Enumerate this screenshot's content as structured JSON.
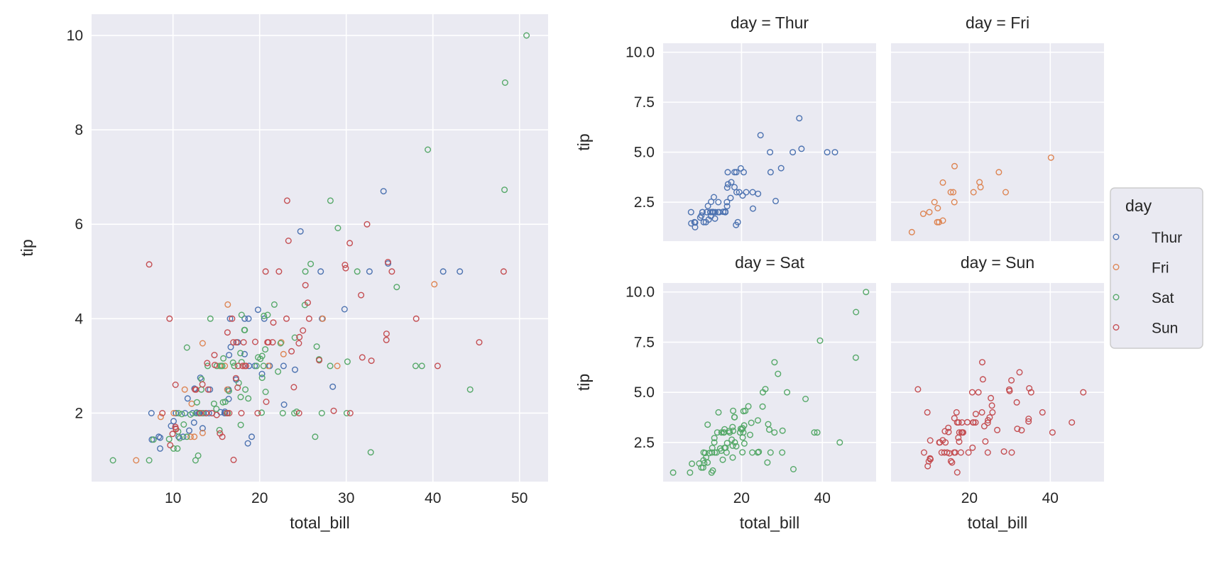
{
  "chart_data": {
    "type": "scatter",
    "x_var": "total_bill",
    "y_var": "tip",
    "hue": "day",
    "xlim": [
      0.6,
      53.3
    ],
    "ylim": [
      0.55,
      10.45
    ],
    "grid": true,
    "legend": {
      "title": "day",
      "placement": "right",
      "entries": [
        "Thur",
        "Fri",
        "Sat",
        "Sun"
      ]
    },
    "series": [
      {
        "name": "Thur",
        "color": "#4c72b0",
        "points": [
          [
            27.2,
            4.0
          ],
          [
            22.76,
            3.0
          ],
          [
            17.29,
            2.71
          ],
          [
            19.44,
            3.0
          ],
          [
            16.66,
            3.4
          ],
          [
            10.07,
            1.83
          ],
          [
            32.68,
            5.0
          ],
          [
            15.98,
            2.03
          ],
          [
            34.83,
            5.17
          ],
          [
            13.03,
            2.0
          ],
          [
            18.28,
            4.0
          ],
          [
            24.71,
            5.85
          ],
          [
            21.16,
            3.0
          ],
          [
            10.65,
            1.5
          ],
          [
            12.43,
            1.8
          ],
          [
            24.08,
            2.92
          ],
          [
            11.69,
            2.31
          ],
          [
            13.42,
            1.68
          ],
          [
            14.26,
            2.5
          ],
          [
            15.95,
            2.0
          ],
          [
            12.48,
            2.52
          ],
          [
            29.8,
            4.2
          ],
          [
            8.52,
            1.48
          ],
          [
            14.52,
            2.0
          ],
          [
            11.38,
            2.0
          ],
          [
            22.82,
            2.18
          ],
          [
            19.08,
            1.5
          ],
          [
            20.27,
            2.83
          ],
          [
            11.17,
            1.5
          ],
          [
            12.26,
            2.0
          ],
          [
            18.26,
            3.25
          ],
          [
            8.51,
            1.25
          ],
          [
            10.33,
            2.0
          ],
          [
            14.15,
            2.0
          ],
          [
            16.0,
            2.0
          ],
          [
            13.16,
            2.75
          ],
          [
            17.47,
            3.5
          ],
          [
            34.3,
            6.7
          ],
          [
            41.19,
            5.0
          ],
          [
            27.05,
            5.0
          ],
          [
            16.43,
            2.3
          ],
          [
            8.35,
            1.5
          ],
          [
            18.64,
            1.36
          ],
          [
            11.87,
            1.63
          ],
          [
            9.78,
            1.73
          ],
          [
            7.51,
            2.0
          ],
          [
            19.81,
            4.19
          ],
          [
            28.44,
            2.56
          ],
          [
            15.48,
            2.02
          ],
          [
            16.58,
            4.0
          ],
          [
            7.56,
            1.44
          ],
          [
            10.34,
            2.0
          ],
          [
            43.11,
            5.0
          ],
          [
            13.0,
            2.0
          ],
          [
            13.51,
            2.0
          ],
          [
            18.71,
            4.0
          ],
          [
            12.74,
            2.01
          ],
          [
            13.0,
            2.0
          ],
          [
            16.4,
            2.5
          ],
          [
            20.53,
            4.0
          ],
          [
            16.47,
            3.23
          ],
          [
            18.78,
            3.0
          ]
        ]
      },
      {
        "name": "Fri",
        "color": "#dd8452",
        "points": [
          [
            28.97,
            3.0
          ],
          [
            22.49,
            3.5
          ],
          [
            5.75,
            1.0
          ],
          [
            16.32,
            4.3
          ],
          [
            22.75,
            3.25
          ],
          [
            40.17,
            4.73
          ],
          [
            27.28,
            4.0
          ],
          [
            12.03,
            1.5
          ],
          [
            21.01,
            3.0
          ],
          [
            12.46,
            1.5
          ],
          [
            11.35,
            2.5
          ],
          [
            15.38,
            3.0
          ],
          [
            12.16,
            2.2
          ],
          [
            13.42,
            3.48
          ],
          [
            8.58,
            1.92
          ],
          [
            15.98,
            3.0
          ],
          [
            13.42,
            1.58
          ],
          [
            16.27,
            2.5
          ],
          [
            10.09,
            2.0
          ]
        ]
      },
      {
        "name": "Sat",
        "color": "#55a868",
        "points": [
          [
            20.65,
            3.35
          ],
          [
            17.92,
            4.08
          ],
          [
            20.29,
            2.75
          ],
          [
            15.77,
            2.23
          ],
          [
            39.42,
            7.58
          ],
          [
            19.82,
            3.18
          ],
          [
            17.81,
            2.34
          ],
          [
            13.37,
            2.0
          ],
          [
            12.69,
            2.0
          ],
          [
            21.7,
            4.3
          ],
          [
            19.65,
            3.0
          ],
          [
            9.55,
            1.45
          ],
          [
            18.35,
            2.5
          ],
          [
            15.06,
            3.0
          ],
          [
            20.69,
            2.45
          ],
          [
            17.78,
            3.27
          ],
          [
            24.06,
            3.6
          ],
          [
            16.31,
            2.0
          ],
          [
            16.93,
            3.07
          ],
          [
            18.69,
            2.31
          ],
          [
            31.27,
            5.0
          ],
          [
            16.04,
            2.24
          ],
          [
            38.01,
            3.0
          ],
          [
            26.41,
            1.5
          ],
          [
            11.24,
            1.76
          ],
          [
            48.27,
            6.73
          ],
          [
            20.29,
            3.21
          ],
          [
            13.81,
            2.0
          ],
          [
            11.02,
            1.98
          ],
          [
            18.29,
            3.76
          ],
          [
            17.59,
            2.64
          ],
          [
            20.08,
            3.15
          ],
          [
            16.45,
            2.47
          ],
          [
            3.07,
            1.0
          ],
          [
            20.23,
            2.01
          ],
          [
            15.01,
            2.09
          ],
          [
            12.02,
            1.97
          ],
          [
            17.07,
            3.0
          ],
          [
            26.86,
            3.14
          ],
          [
            25.28,
            5.0
          ],
          [
            14.73,
            2.2
          ],
          [
            10.51,
            1.25
          ],
          [
            17.92,
            3.08
          ],
          [
            44.3,
            2.5
          ],
          [
            22.42,
            3.48
          ],
          [
            20.92,
            4.08
          ],
          [
            15.36,
            1.64
          ],
          [
            20.49,
            4.06
          ],
          [
            25.21,
            4.29
          ],
          [
            18.24,
            3.76
          ],
          [
            14.31,
            4.0
          ],
          [
            14.0,
            3.0
          ],
          [
            7.25,
            1.0
          ],
          [
            10.59,
            1.61
          ],
          [
            10.63,
            2.0
          ],
          [
            50.81,
            10.0
          ],
          [
            15.81,
            3.16
          ],
          [
            26.59,
            3.41
          ],
          [
            38.73,
            3.0
          ],
          [
            24.27,
            2.03
          ],
          [
            12.76,
            2.23
          ],
          [
            30.06,
            2.0
          ],
          [
            25.89,
            5.16
          ],
          [
            48.33,
            9.0
          ],
          [
            13.27,
            2.5
          ],
          [
            28.17,
            6.5
          ],
          [
            12.9,
            1.1
          ],
          [
            28.15,
            3.0
          ],
          [
            11.59,
            1.5
          ],
          [
            7.74,
            1.44
          ],
          [
            30.14,
            3.09
          ],
          [
            20.45,
            3.0
          ],
          [
            13.28,
            2.72
          ],
          [
            22.12,
            2.88
          ],
          [
            24.01,
            2.0
          ],
          [
            15.69,
            3.0
          ],
          [
            11.61,
            3.39
          ],
          [
            10.77,
            1.47
          ],
          [
            15.53,
            3.0
          ],
          [
            10.07,
            1.25
          ],
          [
            12.6,
            1.0
          ],
          [
            32.83,
            1.17
          ],
          [
            35.83,
            4.67
          ],
          [
            29.03,
            5.92
          ],
          [
            27.18,
            2.0
          ],
          [
            22.67,
            2.0
          ],
          [
            17.82,
            1.75
          ]
        ]
      },
      {
        "name": "Sun",
        "color": "#c44e52",
        "points": [
          [
            16.99,
            1.01
          ],
          [
            10.34,
            1.66
          ],
          [
            21.01,
            3.5
          ],
          [
            23.68,
            3.31
          ],
          [
            24.59,
            3.61
          ],
          [
            25.29,
            4.71
          ],
          [
            8.77,
            2.0
          ],
          [
            26.88,
            3.12
          ],
          [
            15.04,
            1.96
          ],
          [
            14.78,
            3.23
          ],
          [
            10.27,
            1.71
          ],
          [
            35.26,
            5.0
          ],
          [
            15.42,
            1.57
          ],
          [
            18.43,
            3.0
          ],
          [
            14.83,
            3.02
          ],
          [
            21.58,
            3.92
          ],
          [
            10.33,
            1.67
          ],
          [
            16.29,
            3.71
          ],
          [
            16.97,
            3.5
          ],
          [
            17.46,
            2.54
          ],
          [
            13.94,
            3.06
          ],
          [
            9.68,
            1.32
          ],
          [
            30.4,
            5.6
          ],
          [
            18.29,
            3.0
          ],
          [
            22.23,
            5.0
          ],
          [
            32.4,
            6.0
          ],
          [
            28.55,
            2.05
          ],
          [
            18.04,
            3.0
          ],
          [
            12.54,
            2.5
          ],
          [
            10.29,
            2.6
          ],
          [
            34.81,
            5.2
          ],
          [
            9.94,
            1.56
          ],
          [
            25.56,
            4.34
          ],
          [
            19.49,
            3.51
          ],
          [
            38.07,
            4.0
          ],
          [
            23.95,
            2.55
          ],
          [
            25.71,
            4.0
          ],
          [
            17.31,
            3.5
          ],
          [
            29.93,
            5.07
          ],
          [
            14.07,
            2.5
          ],
          [
            13.13,
            2.0
          ],
          [
            17.26,
            2.74
          ],
          [
            24.55,
            2.0
          ],
          [
            19.77,
            2.0
          ],
          [
            29.85,
            5.14
          ],
          [
            48.17,
            5.0
          ],
          [
            25.0,
            3.75
          ],
          [
            13.39,
            2.61
          ],
          [
            16.49,
            2.0
          ],
          [
            21.5,
            3.5
          ],
          [
            12.66,
            2.5
          ],
          [
            16.21,
            2.0
          ],
          [
            13.81,
            2.0
          ],
          [
            17.51,
            3.0
          ],
          [
            24.52,
            3.48
          ],
          [
            20.76,
            2.24
          ],
          [
            31.71,
            4.5
          ],
          [
            7.25,
            5.15
          ],
          [
            31.85,
            3.18
          ],
          [
            16.82,
            4.0
          ],
          [
            32.9,
            3.11
          ],
          [
            17.89,
            2.0
          ],
          [
            14.48,
            2.0
          ],
          [
            9.6,
            4.0
          ],
          [
            34.63,
            3.55
          ],
          [
            34.65,
            3.68
          ],
          [
            23.33,
            5.65
          ],
          [
            45.35,
            3.5
          ],
          [
            23.17,
            6.5
          ],
          [
            40.55,
            3.0
          ],
          [
            20.69,
            5.0
          ],
          [
            20.9,
            3.5
          ],
          [
            30.46,
            2.0
          ],
          [
            18.15,
            3.5
          ],
          [
            23.1,
            4.0
          ],
          [
            15.69,
            1.5
          ]
        ]
      }
    ],
    "panels": [
      {
        "title": "",
        "series": [
          "Thur",
          "Fri",
          "Sat",
          "Sun"
        ],
        "xlabel": "total_bill",
        "ylabel": "tip",
        "xticks": [
          10,
          20,
          30,
          40,
          50
        ],
        "xtick_labels": [
          "10",
          "20",
          "30",
          "40",
          "50"
        ],
        "yticks": [
          2,
          4,
          6,
          8,
          10
        ],
        "ytick_labels": [
          "2",
          "4",
          "6",
          "8",
          "10"
        ]
      },
      {
        "title": "day = Thur",
        "series": [
          "Thur"
        ],
        "xlabel": "",
        "ylabel": "tip",
        "xticks": [
          20,
          40
        ],
        "xtick_labels": [],
        "yticks": [
          2.5,
          5,
          7.5,
          10
        ],
        "ytick_labels": [
          "2.5",
          "5.0",
          "7.5",
          "10.0"
        ]
      },
      {
        "title": "day = Fri",
        "series": [
          "Fri"
        ],
        "xlabel": "",
        "ylabel": "",
        "xticks": [
          20,
          40
        ],
        "xtick_labels": [],
        "yticks": [
          2.5,
          5,
          7.5,
          10
        ],
        "ytick_labels": []
      },
      {
        "title": "day = Sat",
        "series": [
          "Sat"
        ],
        "xlabel": "total_bill",
        "ylabel": "tip",
        "xticks": [
          20,
          40
        ],
        "xtick_labels": [
          "20",
          "40"
        ],
        "yticks": [
          2.5,
          5,
          7.5,
          10
        ],
        "ytick_labels": [
          "2.5",
          "5.0",
          "7.5",
          "10.0"
        ]
      },
      {
        "title": "day = Sun",
        "series": [
          "Sun"
        ],
        "xlabel": "total_bill",
        "ylabel": "",
        "xticks": [
          20,
          40
        ],
        "xtick_labels": [
          "20",
          "40"
        ],
        "yticks": [
          2.5,
          5,
          7.5,
          10
        ],
        "ytick_labels": []
      }
    ]
  }
}
